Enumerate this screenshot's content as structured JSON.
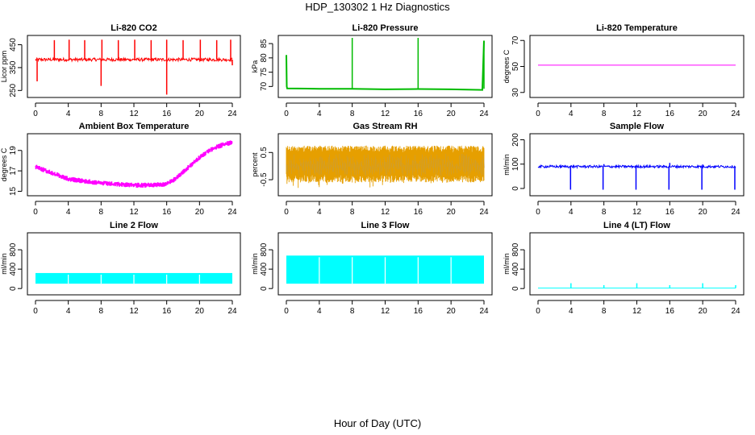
{
  "page": {
    "title": "HDP_130302  1 Hz Diagnostics",
    "xlabel": "Hour of Day (UTC)"
  },
  "chart_data": [
    {
      "type": "line",
      "title": "Li-820 CO2",
      "ylabel": "Licor ppm",
      "xlim": [
        0,
        24
      ],
      "ylim": [
        230,
        480
      ],
      "yticks": [
        250,
        350,
        450
      ],
      "xticks": [
        0,
        4,
        8,
        12,
        16,
        20,
        24
      ],
      "color": "#ff0000",
      "band": {
        "low": 378,
        "high": 392
      },
      "spikes": [
        [
          2.3,
          470
        ],
        [
          4.1,
          472
        ],
        [
          6.0,
          470
        ],
        [
          8.1,
          472
        ],
        [
          10.1,
          470
        ],
        [
          12.1,
          472
        ],
        [
          14.1,
          470
        ],
        [
          16.0,
          472
        ],
        [
          18.0,
          470
        ],
        [
          20.1,
          472
        ],
        [
          22.1,
          470
        ],
        [
          23.8,
          472
        ],
        [
          0.2,
          290
        ],
        [
          8.0,
          270
        ],
        [
          16.0,
          232
        ],
        [
          24.0,
          360
        ]
      ]
    },
    {
      "type": "line",
      "title": "Li-820 Pressure",
      "ylabel": "kPa",
      "xlim": [
        0,
        24
      ],
      "ylim": [
        67,
        87
      ],
      "yticks": [
        70,
        75,
        80,
        85
      ],
      "xticks": [
        0,
        4,
        8,
        12,
        16,
        20,
        24
      ],
      "color": "#00bb00",
      "series": [
        {
          "x": [
            0,
            0.05,
            0.1,
            4,
            8,
            12,
            16,
            20,
            23.8,
            24
          ],
          "y": [
            81,
            70,
            69.3,
            69.2,
            69.2,
            69.0,
            69.1,
            69.0,
            68.8,
            86
          ]
        }
      ],
      "spikes": [
        [
          8.0,
          87
        ],
        [
          16.0,
          87
        ],
        [
          24.0,
          86
        ]
      ]
    },
    {
      "type": "line",
      "title": "Li-820 Temperature",
      "ylabel": "degrees C",
      "xlim": [
        0,
        24
      ],
      "ylim": [
        28,
        72
      ],
      "yticks": [
        30,
        50,
        70
      ],
      "xticks": [
        0,
        4,
        8,
        12,
        16,
        20,
        24
      ],
      "color": "#ff00ff",
      "series": [
        {
          "x": [
            0,
            24
          ],
          "y": [
            51,
            51
          ]
        }
      ]
    },
    {
      "type": "area",
      "title": "Ambient Box Temperature",
      "ylabel": "degrees C",
      "xlim": [
        0,
        24
      ],
      "ylim": [
        14.8,
        20.4
      ],
      "yticks": [
        15,
        17,
        19
      ],
      "xticks": [
        0,
        4,
        8,
        12,
        16,
        20,
        24
      ],
      "color": "#ff00ff",
      "series": [
        {
          "x": [
            0,
            2,
            4,
            6,
            8,
            10,
            12,
            14,
            16,
            17,
            18,
            19,
            20,
            21,
            22,
            23,
            24
          ],
          "y": [
            17.4,
            16.8,
            16.2,
            16.0,
            15.8,
            15.7,
            15.6,
            15.6,
            15.7,
            16.2,
            16.9,
            17.6,
            18.3,
            18.9,
            19.3,
            19.6,
            19.8
          ],
          "spread": 0.5
        }
      ]
    },
    {
      "type": "area",
      "title": "Gas Stream RH",
      "ylabel": "percent",
      "xlim": [
        0,
        24
      ],
      "ylim": [
        -1.0,
        1.1
      ],
      "yticks": [
        -0.5,
        0.5
      ],
      "xticks": [
        0,
        4,
        8,
        12,
        16,
        20,
        24
      ],
      "color": "#e69f00",
      "series": [
        {
          "low": -0.6,
          "high": 0.75
        }
      ]
    },
    {
      "type": "line",
      "title": "Sample Flow",
      "ylabel": "ml/min",
      "xlim": [
        0,
        24
      ],
      "ylim": [
        -20,
        215
      ],
      "yticks": [
        0,
        100,
        200
      ],
      "xticks": [
        0,
        4,
        8,
        12,
        16,
        20,
        24
      ],
      "color": "#0000ff",
      "band": {
        "low": 85,
        "high": 95
      },
      "spikes": [
        [
          3.95,
          -5
        ],
        [
          7.9,
          -5
        ],
        [
          11.9,
          -5
        ],
        [
          15.9,
          -5
        ],
        [
          19.9,
          -5
        ],
        [
          23.9,
          -5
        ],
        [
          8.0,
          100
        ],
        [
          16.0,
          105
        ],
        [
          20.0,
          98
        ]
      ]
    },
    {
      "type": "area",
      "title": "Line 2 Flow",
      "ylabel": "ml/min",
      "xlim": [
        0,
        24
      ],
      "ylim": [
        -80,
        1100
      ],
      "yticks": [
        0,
        400,
        800
      ],
      "xticks": [
        0,
        4,
        8,
        12,
        16,
        20,
        24
      ],
      "color": "#00ffff",
      "series": [
        {
          "x0": 0,
          "x1": 24,
          "low": 100,
          "high": 320
        }
      ],
      "gaps": [
        4,
        8,
        12,
        16,
        20
      ]
    },
    {
      "type": "area",
      "title": "Line 3 Flow",
      "ylabel": "ml/min",
      "xlim": [
        0,
        24
      ],
      "ylim": [
        -80,
        1100
      ],
      "yticks": [
        0,
        400,
        800
      ],
      "xticks": [
        0,
        4,
        8,
        12,
        16,
        20,
        24
      ],
      "color": "#00ffff",
      "series": [
        {
          "x0": 0,
          "x1": 24,
          "low": 100,
          "high": 680
        }
      ],
      "gaps": [
        4,
        8,
        12,
        16,
        20
      ]
    },
    {
      "type": "line",
      "title": "Line 4 (LT) Flow",
      "ylabel": "ml/min",
      "xlim": [
        0,
        24
      ],
      "ylim": [
        -80,
        1100
      ],
      "yticks": [
        0,
        400,
        800
      ],
      "xticks": [
        0,
        4,
        8,
        12,
        16,
        20,
        24
      ],
      "color": "#00ffff",
      "series": [
        {
          "x": [
            0,
            24
          ],
          "y": [
            10,
            10
          ]
        }
      ],
      "spikes": [
        [
          4.0,
          110
        ],
        [
          8.0,
          70
        ],
        [
          12.0,
          110
        ],
        [
          16.0,
          70
        ],
        [
          20.0,
          110
        ],
        [
          24.0,
          70
        ]
      ]
    }
  ]
}
